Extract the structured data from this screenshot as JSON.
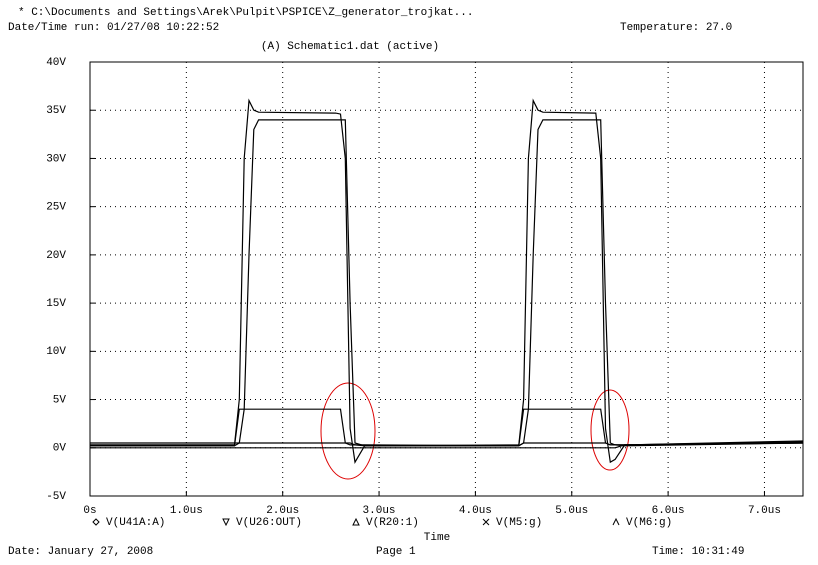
{
  "header": {
    "path": "* C:\\Documents and Settings\\Arek\\Pulpit\\PSPICE\\Z_generator_trojkat...",
    "run": "Date/Time run: 01/27/08 10:22:52",
    "temperature": "Temperature: 27.0"
  },
  "footer": {
    "date": "Date: January 27, 2008",
    "page": "Page 1",
    "time": "Time: 10:31:49"
  },
  "chart_data": {
    "type": "line",
    "title": "(A) Schematic1.dat (active)",
    "x_label": "Time",
    "grid": true,
    "xlim": [
      0,
      7.4
    ],
    "ylim": [
      -5,
      40
    ],
    "xticks": [
      {
        "value": 0,
        "label": "0s"
      },
      {
        "value": 1,
        "label": "1.0us"
      },
      {
        "value": 2,
        "label": "2.0us"
      },
      {
        "value": 3,
        "label": "3.0us"
      },
      {
        "value": 4,
        "label": "4.0us"
      },
      {
        "value": 5,
        "label": "5.0us"
      },
      {
        "value": 6,
        "label": "6.0us"
      },
      {
        "value": 7,
        "label": "7.0us"
      }
    ],
    "yticks": [
      {
        "value": -5,
        "label": "-5V"
      },
      {
        "value": 0,
        "label": "0V"
      },
      {
        "value": 5,
        "label": "5V"
      },
      {
        "value": 10,
        "label": "10V"
      },
      {
        "value": 15,
        "label": "15V"
      },
      {
        "value": 20,
        "label": "20V"
      },
      {
        "value": 25,
        "label": "25V"
      },
      {
        "value": 30,
        "label": "30V"
      },
      {
        "value": 35,
        "label": "35V"
      },
      {
        "value": 40,
        "label": "40V"
      }
    ],
    "x": [
      0,
      1.5,
      1.55,
      1.6,
      1.65,
      1.7,
      1.75,
      2.55,
      2.6,
      2.65,
      2.7,
      2.75,
      2.85,
      4.45,
      4.5,
      4.55,
      4.6,
      4.65,
      4.7,
      5.25,
      5.3,
      5.35,
      5.4,
      5.45,
      5.55,
      7.4
    ],
    "series": [
      {
        "name": "V(U41A:A)",
        "color": "#000000",
        "values": [
          0,
          0,
          0,
          0,
          0,
          0,
          0,
          0,
          0,
          0,
          0,
          0,
          0,
          0,
          0,
          0,
          0,
          0,
          0,
          0,
          0,
          0,
          0,
          0,
          0.3,
          0.7
        ]
      },
      {
        "name": "V(U26:OUT)",
        "color": "#000000",
        "values": [
          0.5,
          0.5,
          0.5,
          0.5,
          0.5,
          0.5,
          0.5,
          0.5,
          0.5,
          0.5,
          0.5,
          0.3,
          0.2,
          0.2,
          0.5,
          0.5,
          0.5,
          0.5,
          0.5,
          0.5,
          0.5,
          0.5,
          0.3,
          0.3,
          0.3,
          0.5
        ]
      },
      {
        "name": "V(R20:1)",
        "color": "#000000",
        "values": [
          0.2,
          0.2,
          4,
          4,
          4,
          4,
          4,
          4,
          4,
          0.5,
          0.3,
          0.3,
          0.3,
          0.2,
          4,
          4,
          4,
          4,
          4,
          4,
          4,
          0.5,
          0.3,
          0.3,
          0.3,
          0.6
        ]
      },
      {
        "name": "V(M5:g)",
        "color": "#000000",
        "values": [
          0.2,
          0.2,
          0.5,
          4,
          20,
          33,
          34,
          34,
          34,
          34,
          15,
          0.5,
          0.2,
          0.2,
          0.5,
          4,
          20,
          33,
          34,
          34,
          34,
          15,
          0.5,
          0.3,
          0.2,
          0.5
        ]
      },
      {
        "name": "V(M6:g)",
        "color": "#000000",
        "values": [
          0.3,
          0.3,
          5,
          30,
          36,
          35,
          34.8,
          34.7,
          34.6,
          30,
          2,
          -1.5,
          0.2,
          0.3,
          5,
          30,
          36,
          35,
          34.8,
          34.7,
          30,
          2,
          -1.5,
          -1.2,
          0.3,
          0.5
        ]
      }
    ]
  }
}
